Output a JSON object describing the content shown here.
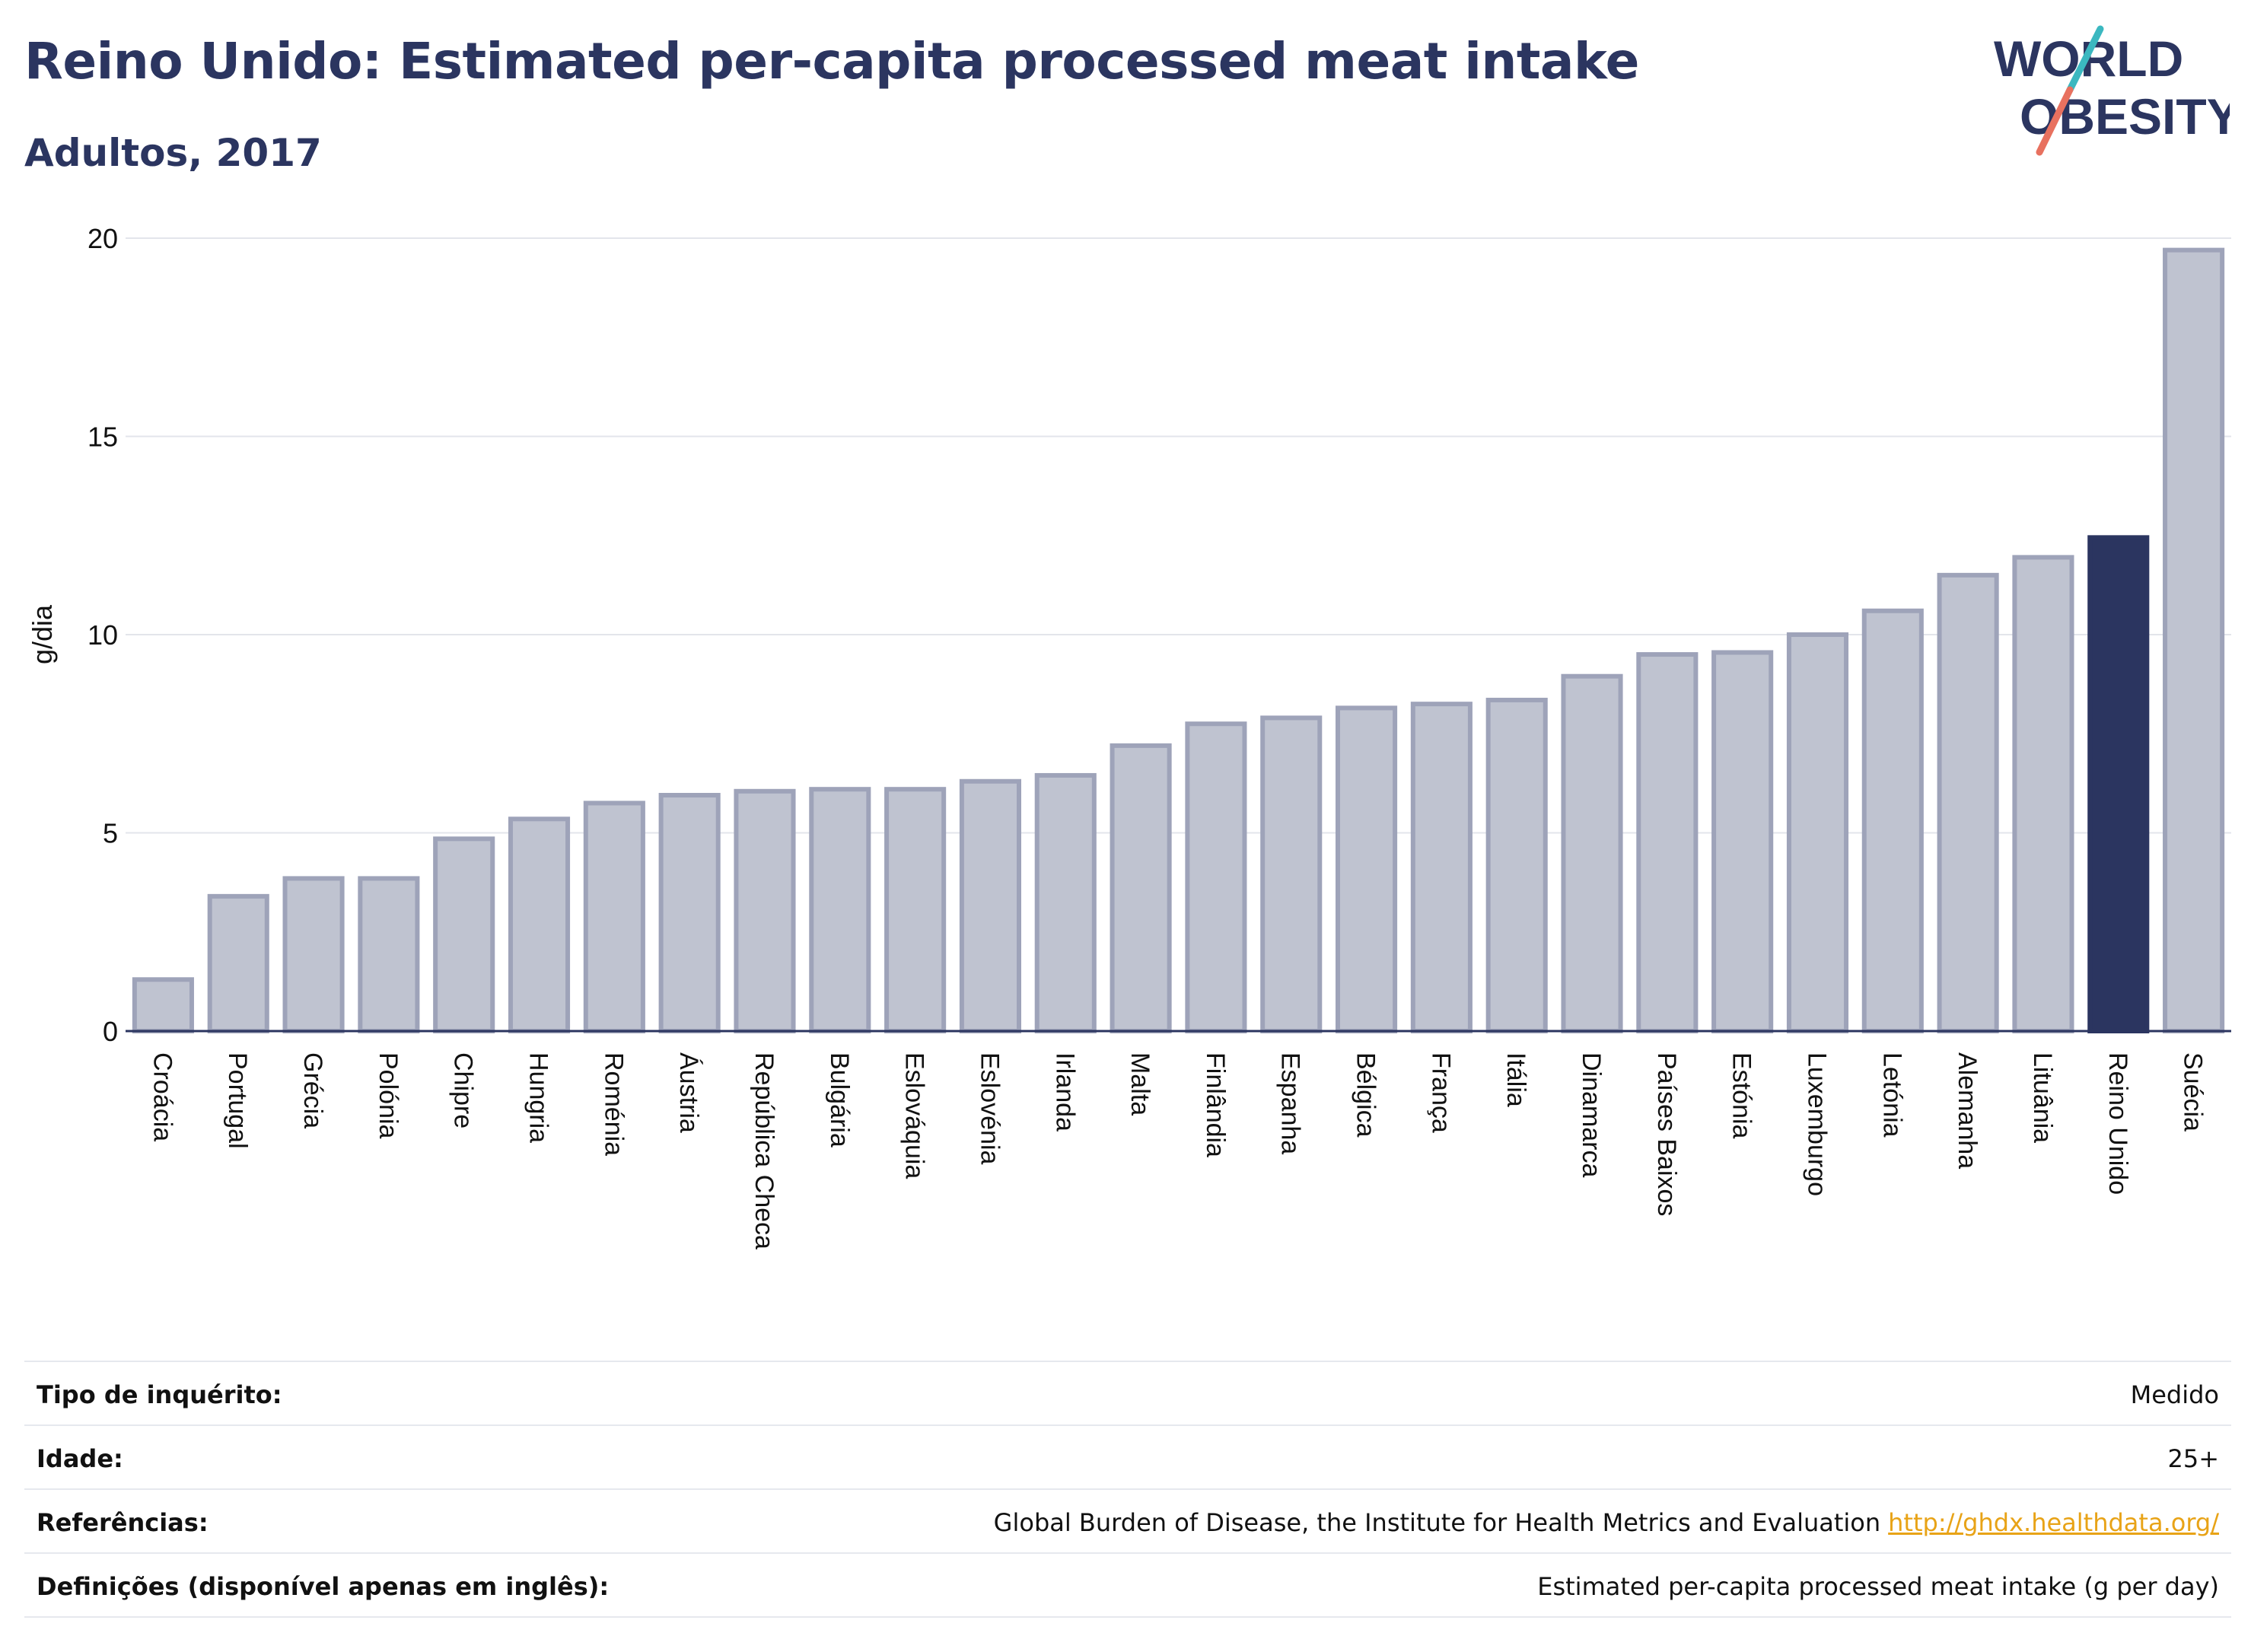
{
  "title": "Reino Unido: Estimated per-capita processed meat intake",
  "subtitle": "Adultos, 2017",
  "logo": {
    "line1": "WORLD",
    "line2": "OBESITY",
    "colors": {
      "text": "#2b3560",
      "accent_teal": "#3bb8c0",
      "accent_coral": "#e8715f"
    }
  },
  "chart_data": {
    "type": "bar",
    "title": "Reino Unido: Estimated per-capita processed meat intake",
    "subtitle": "Adultos, 2017",
    "ylabel": "g/dia",
    "xlabel": "",
    "ylim": [
      0,
      20
    ],
    "yticks": [
      0,
      5,
      10,
      15,
      20
    ],
    "grid": true,
    "highlight": "Reino Unido",
    "colors": {
      "bar": "#bfc3d0",
      "bar_border": "#9ea3b9",
      "highlight": "#2b3560"
    },
    "categories": [
      "Croácia",
      "Portugal",
      "Grécia",
      "Polónia",
      "Chipre",
      "Hungria",
      "Roménia",
      "Áustria",
      "República Checa",
      "Bulgária",
      "Eslováquia",
      "Eslovénia",
      "Irlanda",
      "Malta",
      "Finlândia",
      "Espanha",
      "Bélgica",
      "França",
      "Itália",
      "Dinamarca",
      "Países Baixos",
      "Estónia",
      "Luxemburgo",
      "Letónia",
      "Alemanha",
      "Lituânia",
      "Reino Unido",
      "Suécia"
    ],
    "values": [
      1.3,
      3.4,
      3.85,
      3.85,
      4.85,
      5.35,
      5.75,
      5.95,
      6.05,
      6.1,
      6.1,
      6.3,
      6.45,
      7.2,
      7.75,
      7.9,
      8.15,
      8.25,
      8.35,
      8.95,
      9.5,
      9.55,
      10.0,
      10.6,
      11.5,
      11.95,
      12.45,
      19.7
    ]
  },
  "meta": {
    "survey_type": {
      "label": "Tipo de inquérito:",
      "value": "Medido"
    },
    "age": {
      "label": "Idade:",
      "value": "25+"
    },
    "references": {
      "label": "Referências:",
      "value": "Global Burden of Disease, the Institute for Health Metrics and Evaluation",
      "link": "http://ghdx.healthdata.org/"
    },
    "definitions": {
      "label": "Definições (disponível apenas em inglês):",
      "value": "Estimated per-capita processed meat intake (g per day)"
    }
  }
}
